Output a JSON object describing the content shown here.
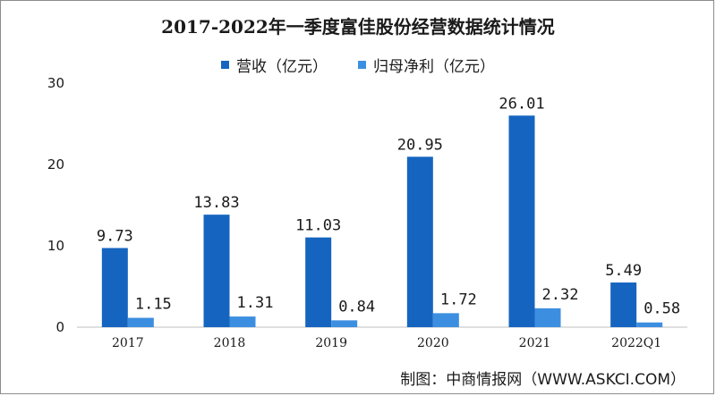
{
  "chart_data": {
    "type": "bar",
    "title": "2017-2022年一季度富佳股份经营数据统计情况",
    "categories": [
      "2017",
      "2018",
      "2019",
      "2020",
      "2021",
      "2022Q1"
    ],
    "series": [
      {
        "name": "营收（亿元）",
        "values": [
          9.73,
          13.83,
          11.03,
          20.95,
          26.01,
          5.49
        ],
        "color": "#1565c0"
      },
      {
        "name": "归母净利（亿元）",
        "values": [
          1.15,
          1.31,
          0.84,
          1.72,
          2.32,
          0.58
        ],
        "color": "#3c8fe0"
      }
    ],
    "value_labels": [
      [
        "9.73",
        "13.83",
        "11.03",
        "20.95",
        "26.01",
        "5.49"
      ],
      [
        "1.15",
        "1.31",
        "0.84",
        "1.72",
        "2.32",
        "0.58"
      ]
    ],
    "ylim": [
      0,
      30
    ],
    "yticks": [
      "0",
      "10",
      "20",
      "30"
    ],
    "legend_position": "top-center",
    "grid": false
  },
  "source_text": "制图：中商情报网（WWW.ASKCI.COM）"
}
